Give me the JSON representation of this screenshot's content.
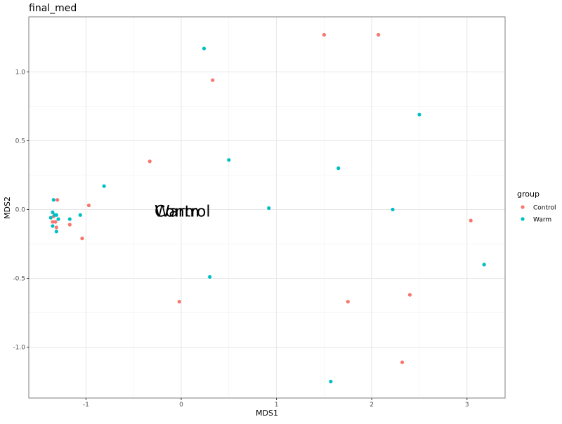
{
  "chart_data": {
    "type": "scatter",
    "title": "final_med",
    "xlabel": "MDS1",
    "ylabel": "MDS2",
    "xlim": [
      -1.6,
      3.4
    ],
    "ylim": [
      -1.37,
      1.4
    ],
    "x_ticks": [
      -1,
      0,
      1,
      2,
      3
    ],
    "y_ticks": [
      -1.0,
      -0.5,
      0.0,
      0.5,
      1.0
    ],
    "x_tick_labels": [
      "-1",
      "0",
      "1",
      "2",
      "3"
    ],
    "y_tick_labels": [
      "-1.0",
      "-0.5",
      "0.0",
      "0.5",
      "1.0"
    ],
    "grid": true,
    "legend": {
      "title": "group",
      "position": "right",
      "entries": [
        "Control",
        "Warm"
      ]
    },
    "annotations": [
      {
        "text": "Control",
        "x": -0.28,
        "y": -0.01,
        "color": "#000000"
      },
      {
        "text": "Warm",
        "x": -0.28,
        "y": -0.01,
        "color": "#000000"
      }
    ],
    "series": [
      {
        "name": "Control",
        "color": "#F8766D",
        "points": [
          [
            1.5,
            1.27
          ],
          [
            2.07,
            1.27
          ],
          [
            0.33,
            0.94
          ],
          [
            -0.33,
            0.35
          ],
          [
            -0.97,
            0.03
          ],
          [
            -1.3,
            0.07
          ],
          [
            -1.04,
            -0.21
          ],
          [
            -1.17,
            -0.11
          ],
          [
            -1.31,
            -0.13
          ],
          [
            -1.35,
            -0.09
          ],
          [
            -1.32,
            -0.09
          ],
          [
            -1.34,
            -0.05
          ],
          [
            -0.02,
            -0.67
          ],
          [
            1.75,
            -0.67
          ],
          [
            2.4,
            -0.62
          ],
          [
            2.32,
            -1.11
          ],
          [
            3.04,
            -0.08
          ]
        ]
      },
      {
        "name": "Warm",
        "color": "#00BFC4",
        "points": [
          [
            0.24,
            1.17
          ],
          [
            2.5,
            0.69
          ],
          [
            0.5,
            0.36
          ],
          [
            1.65,
            0.3
          ],
          [
            -0.81,
            0.17
          ],
          [
            0.92,
            0.01
          ],
          [
            2.22,
            0.0
          ],
          [
            -1.34,
            0.07
          ],
          [
            -1.35,
            -0.02
          ],
          [
            -1.33,
            -0.04
          ],
          [
            -1.31,
            -0.04
          ],
          [
            -1.06,
            -0.04
          ],
          [
            -1.17,
            -0.07
          ],
          [
            -1.29,
            -0.07
          ],
          [
            -1.37,
            -0.06
          ],
          [
            -1.35,
            -0.12
          ],
          [
            -1.31,
            -0.16
          ],
          [
            0.3,
            -0.49
          ],
          [
            3.18,
            -0.4
          ],
          [
            1.57,
            -1.25
          ]
        ]
      }
    ]
  }
}
